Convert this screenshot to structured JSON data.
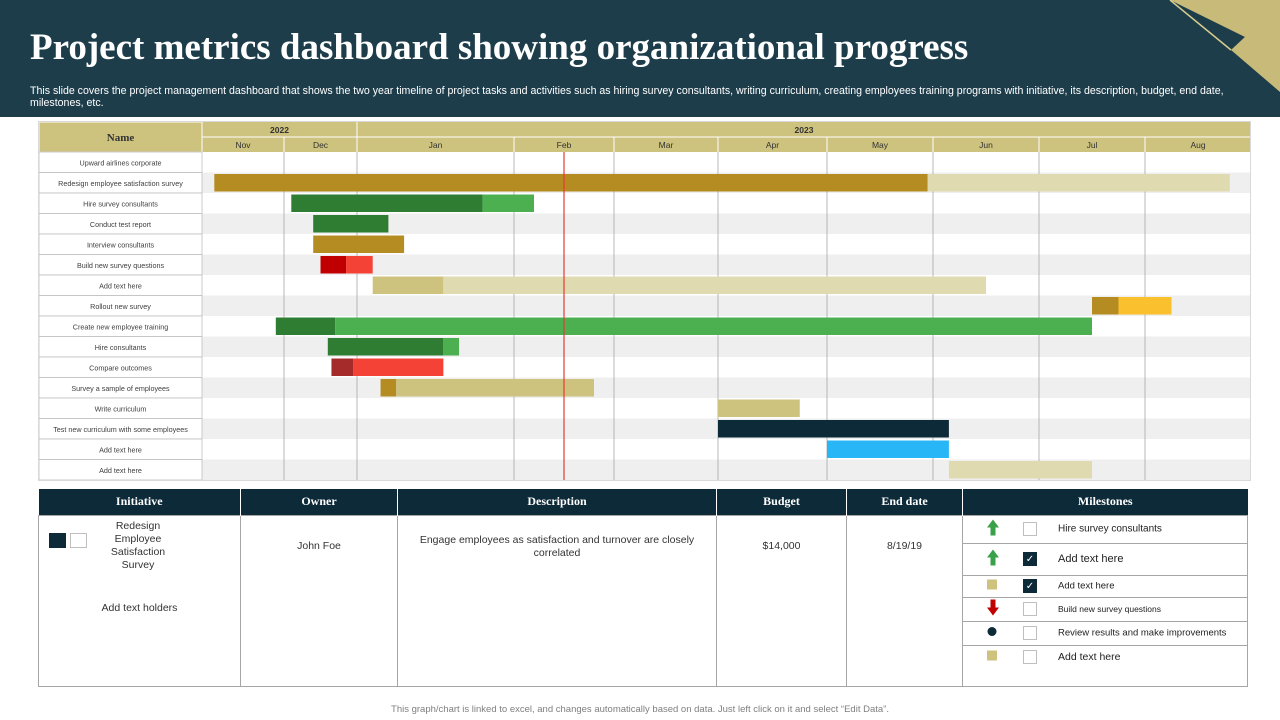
{
  "header": {
    "title": "Project metrics dashboard showing organizational progress",
    "subtitle": "This slide covers the project management dashboard that shows the two year timeline of project tasks and activities such as hiring survey consultants, writing curriculum, creating employees training programs with initiative, its description, budget, end date, milestones, etc."
  },
  "chart_data": {
    "type": "gantt",
    "name_header": "Name",
    "years": [
      {
        "label": "2022",
        "start_month": 0,
        "end_month": 2
      },
      {
        "label": "2023",
        "start_month": 2,
        "end_month": 10
      }
    ],
    "months": [
      "Nov",
      "Dec",
      "Jan",
      "Feb",
      "Mar",
      "Apr",
      "May",
      "Jun",
      "Jul",
      "Aug"
    ],
    "today_marker": 3.5,
    "tasks": [
      {
        "name": "Upward airlines corporate",
        "bars": []
      },
      {
        "name": "Redesign employee satisfaction survey",
        "bars": [
          {
            "start": 0.15,
            "end": 6.95,
            "color": "#b58c22"
          },
          {
            "start": 6.95,
            "end": 9.8,
            "color": "#e0dab0"
          }
        ]
      },
      {
        "name": "Hire survey consultants",
        "bars": [
          {
            "start": 1.1,
            "end": 2.8,
            "color": "#2e7d32"
          },
          {
            "start": 2.8,
            "end": 3.2,
            "color": "#4caf50"
          }
        ]
      },
      {
        "name": "Conduct test report",
        "bars": [
          {
            "start": 1.4,
            "end": 2.2,
            "color": "#2e7d32"
          }
        ]
      },
      {
        "name": "Interview consultants",
        "bars": [
          {
            "start": 1.4,
            "end": 2.3,
            "color": "#b58c22"
          }
        ]
      },
      {
        "name": "Build new survey questions",
        "bars": [
          {
            "start": 1.5,
            "end": 1.85,
            "color": "#c00000"
          },
          {
            "start": 1.85,
            "end": 2.1,
            "color": "#f44336"
          }
        ]
      },
      {
        "name": "Add text here",
        "bars": [
          {
            "start": 2.1,
            "end": 2.55,
            "color": "#cdc27e"
          },
          {
            "start": 2.55,
            "end": 7.5,
            "color": "#e0dab0"
          }
        ]
      },
      {
        "name": "Rollout new survey",
        "bars": [
          {
            "start": 8.5,
            "end": 8.75,
            "color": "#b58c22"
          },
          {
            "start": 8.75,
            "end": 9.25,
            "color": "#fbc02d"
          }
        ]
      },
      {
        "name": "Create new employee training",
        "bars": [
          {
            "start": 0.9,
            "end": 1.7,
            "color": "#2e7d32"
          },
          {
            "start": 1.7,
            "end": 8.5,
            "color": "#4caf50"
          }
        ]
      },
      {
        "name": "Hire consultants",
        "bars": [
          {
            "start": 1.6,
            "end": 2.55,
            "color": "#2e7d32"
          },
          {
            "start": 2.55,
            "end": 2.65,
            "color": "#4caf50"
          }
        ]
      },
      {
        "name": "Compare outcomes",
        "bars": [
          {
            "start": 1.65,
            "end": 1.95,
            "color": "#a52a2a"
          },
          {
            "start": 1.95,
            "end": 2.55,
            "color": "#f44336"
          }
        ]
      },
      {
        "name": "Survey a sample of employees",
        "bars": [
          {
            "start": 2.15,
            "end": 2.25,
            "color": "#b58c22"
          },
          {
            "start": 2.25,
            "end": 3.8,
            "color": "#cdc27e"
          }
        ]
      },
      {
        "name": "Write curriculum",
        "bars": [
          {
            "start": 5.0,
            "end": 5.75,
            "color": "#cdc27e"
          }
        ]
      },
      {
        "name": "Test new curriculum with some employees",
        "bars": [
          {
            "start": 5.0,
            "end": 7.15,
            "color": "#0d2a38"
          }
        ]
      },
      {
        "name": "Add text here",
        "bars": [
          {
            "start": 6.0,
            "end": 7.15,
            "color": "#29b6f6"
          }
        ]
      },
      {
        "name": "Add text here",
        "bars": [
          {
            "start": 7.15,
            "end": 8.5,
            "color": "#e0dab0"
          }
        ]
      }
    ]
  },
  "table": {
    "headers": {
      "initiative": "Initiative",
      "owner": "Owner",
      "description": "Description",
      "budget": "Budget",
      "end_date": "End date",
      "milestones": "Milestones"
    },
    "row": {
      "initiative": "Redesign Employee Satisfaction Survey",
      "initiative_extra": "Add text holders",
      "owner": "John Foe",
      "description": "Engage employees as satisfaction and turnover are closely correlated",
      "budget": "$14,000",
      "end_date": "8/19/19"
    },
    "milestones": [
      {
        "icon": "arrow-up-green",
        "checked": false,
        "label": "Hire survey consultants"
      },
      {
        "icon": "arrow-up-green",
        "checked": true,
        "label": "Add text here"
      },
      {
        "icon": "square-tan",
        "checked": true,
        "label": "Add text here"
      },
      {
        "icon": "arrow-down-red",
        "checked": false,
        "label": "Build new survey questions"
      },
      {
        "icon": "circle-navy",
        "checked": false,
        "label": "Review results and make improvements"
      },
      {
        "icon": "square-tan",
        "checked": false,
        "label": "Add text here"
      }
    ]
  },
  "footer": {
    "note": "This graph/chart is linked to excel, and changes automatically based on data. Just left click on it and select “Edit Data”."
  },
  "colors": {
    "header_bg": "#1d3d4b",
    "header_gold": "#c8bb79",
    "table_header": "#0d2a38",
    "gantt_header": "#cdc27e"
  }
}
